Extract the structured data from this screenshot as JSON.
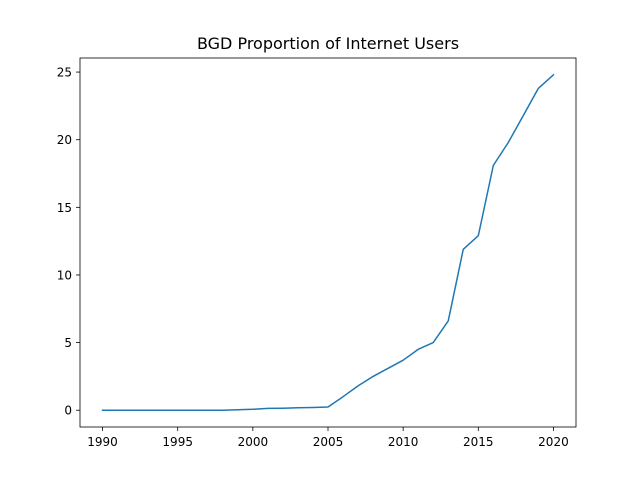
{
  "chart_data": {
    "type": "line",
    "title": "BGD Proportion of Internet Users",
    "xlabel": "",
    "ylabel": "",
    "xlim": [
      1988.5,
      2021.5
    ],
    "ylim": [
      -1.24,
      26.04
    ],
    "x_ticks": [
      1990,
      1995,
      2000,
      2005,
      2010,
      2015,
      2020
    ],
    "y_ticks": [
      0,
      5,
      10,
      15,
      20,
      25
    ],
    "grid": false,
    "legend": "none",
    "series": [
      {
        "color": "#1f77b4",
        "x": [
          1990,
          1991,
          1992,
          1993,
          1994,
          1995,
          1996,
          1997,
          1998,
          1999,
          2000,
          2001,
          2002,
          2003,
          2004,
          2005,
          2006,
          2007,
          2008,
          2009,
          2010,
          2011,
          2012,
          2013,
          2014,
          2015,
          2016,
          2017,
          2018,
          2019,
          2020
        ],
        "y": [
          0,
          0,
          0,
          0,
          0,
          0,
          0,
          0,
          0,
          0.04,
          0.07,
          0.14,
          0.15,
          0.18,
          0.2,
          0.24,
          1.0,
          1.8,
          2.5,
          3.1,
          3.7,
          4.5,
          5.0,
          6.6,
          11.9,
          12.9,
          18.1,
          19.8,
          21.8,
          23.8,
          24.8
        ]
      }
    ]
  }
}
